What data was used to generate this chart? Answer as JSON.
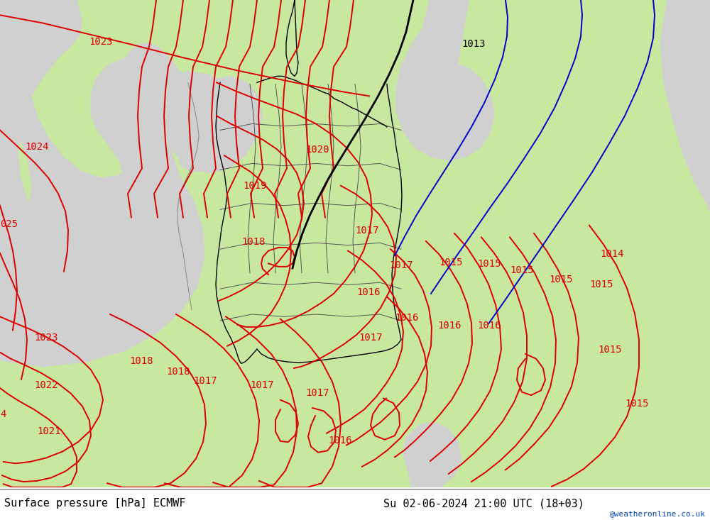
{
  "title_left": "Surface pressure [hPa] ECMWF",
  "title_right": "Su 02-06-2024 21:00 UTC (18+03)",
  "watermark": "@weatheronline.co.uk",
  "sea_color": "#d0d0d0",
  "land_green": "#c8e8a0",
  "border_dark": "#333333",
  "border_gray": "#888888",
  "red": "#dd0000",
  "black": "#000000",
  "blue": "#0000cc",
  "white": "#ffffff",
  "label_fs": 10,
  "title_fs": 11,
  "watermark_fs": 8,
  "iso_lw": 1.4,
  "border_lw": 1.0
}
